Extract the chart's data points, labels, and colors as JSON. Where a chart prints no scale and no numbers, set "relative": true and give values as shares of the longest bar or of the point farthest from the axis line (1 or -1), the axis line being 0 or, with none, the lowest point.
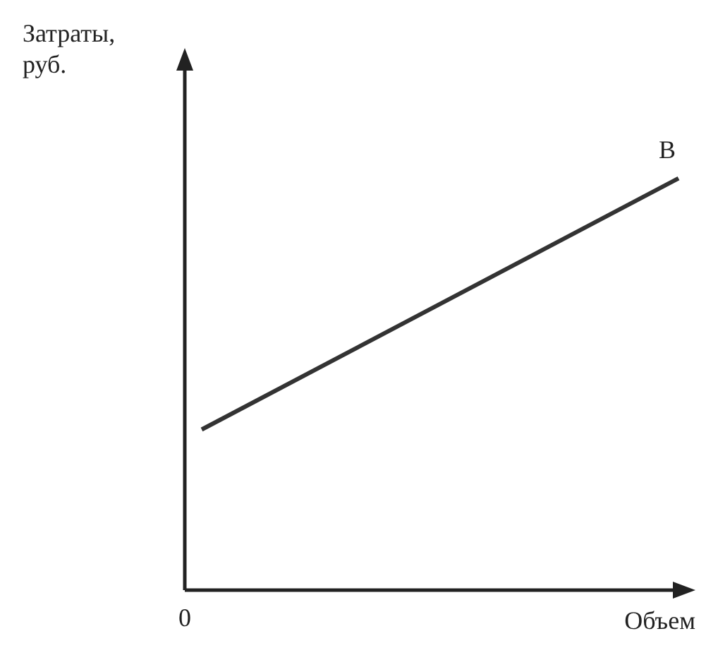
{
  "chart_data": {
    "type": "line",
    "relative": true,
    "xlabel": "Объем",
    "ylabel": "Затраты, руб.",
    "categories": [
      null,
      null
    ],
    "series": [
      {
        "color": "#333333",
        "values": [
          0.39,
          1
        ]
      }
    ],
    "annotations": [
      "0",
      "В"
    ],
    "grid": false,
    "legend": false,
    "marker": "none",
    "line_style": "solid"
  }
}
